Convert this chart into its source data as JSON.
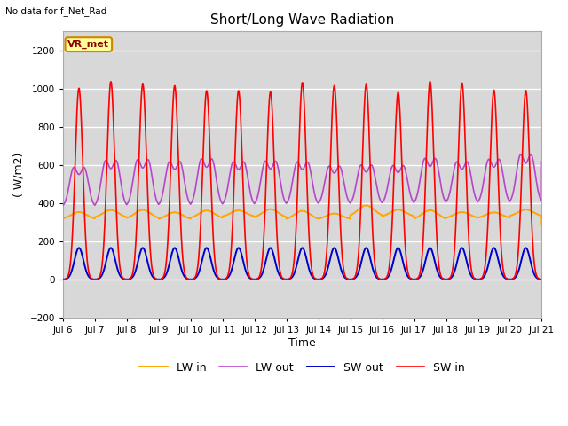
{
  "title": "Short/Long Wave Radiation",
  "top_left_text": "No data for f_Net_Rad",
  "ylabel": "( W/m2)",
  "xlabel": "Time",
  "ylim": [
    -200,
    1300
  ],
  "yticks": [
    -200,
    0,
    200,
    400,
    600,
    800,
    1000,
    1200
  ],
  "background_color": "#ffffff",
  "plot_bg_color": "#d8d8d8",
  "grid_color": "#ffffff",
  "legend_entries": [
    "SW in",
    "LW in",
    "SW out",
    "LW out"
  ],
  "legend_colors": [
    "#ff0000",
    "#ffa500",
    "#0000cd",
    "#bb44cc"
  ],
  "vr_met_label": "VR_met",
  "vr_met_bg": "#ffff99",
  "vr_met_border": "#cc8800",
  "n_days": 15,
  "day_labels": [
    "Jul 6",
    "Jul 7",
    "Jul 8",
    "Jul 9",
    "Jul 10",
    "Jul 11",
    "Jul 12",
    "Jul 13",
    "Jul 14",
    "Jul 15",
    "Jul 16",
    "Jul 17",
    "Jul 18",
    "Jul 19",
    "Jul 20",
    "Jul 21"
  ]
}
